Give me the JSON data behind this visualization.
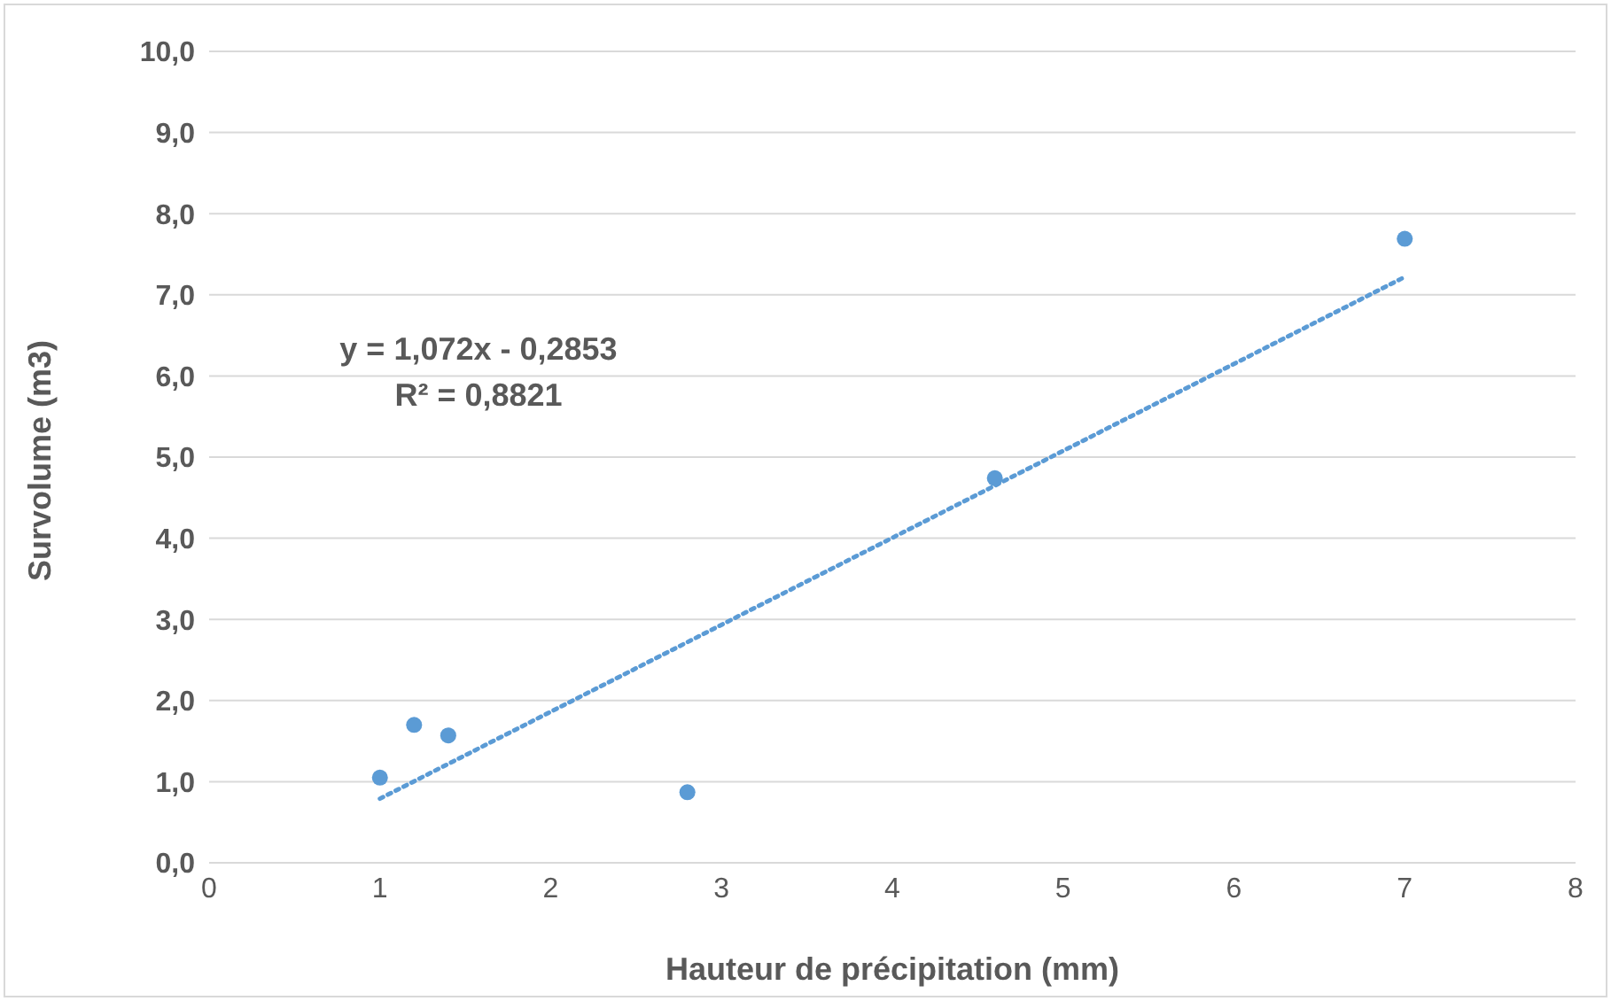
{
  "chart_data": {
    "type": "scatter",
    "xlabel": "Hauteur de précipitation (mm)",
    "ylabel": "Survolume (m3)",
    "annotations": [
      "y = 1,072x - 0,2853",
      "R² = 0,8821"
    ],
    "xlim": [
      0,
      8
    ],
    "xticks": [
      0,
      1,
      2,
      3,
      4,
      5,
      6,
      7,
      8
    ],
    "ylim": [
      0,
      10
    ],
    "yticks": [
      {
        "value": 0,
        "label": "0,0"
      },
      {
        "value": 1,
        "label": "1,0"
      },
      {
        "value": 2,
        "label": "2,0"
      },
      {
        "value": 3,
        "label": "3,0"
      },
      {
        "value": 4,
        "label": "4,0"
      },
      {
        "value": 5,
        "label": "5,0"
      },
      {
        "value": 6,
        "label": "6,0"
      },
      {
        "value": 7,
        "label": "7,0"
      },
      {
        "value": 8,
        "label": "8,0"
      },
      {
        "value": 9,
        "label": "9,0"
      },
      {
        "value": 10,
        "label": "10,0"
      }
    ],
    "grid": "y",
    "series": [
      {
        "type": "scatter",
        "color": "#5b9bd5",
        "marker": "circle",
        "x": [
          1,
          1.2,
          1.4,
          2.8,
          4.6,
          7
        ],
        "values": [
          1.05,
          1.7,
          1.57,
          0.87,
          4.74,
          7.69
        ]
      },
      {
        "type": "line",
        "color": "#5b9bd5",
        "line_style": "dotted",
        "marker": "none",
        "x": [
          1,
          7
        ],
        "values": [
          0.79,
          7.22
        ]
      }
    ]
  }
}
